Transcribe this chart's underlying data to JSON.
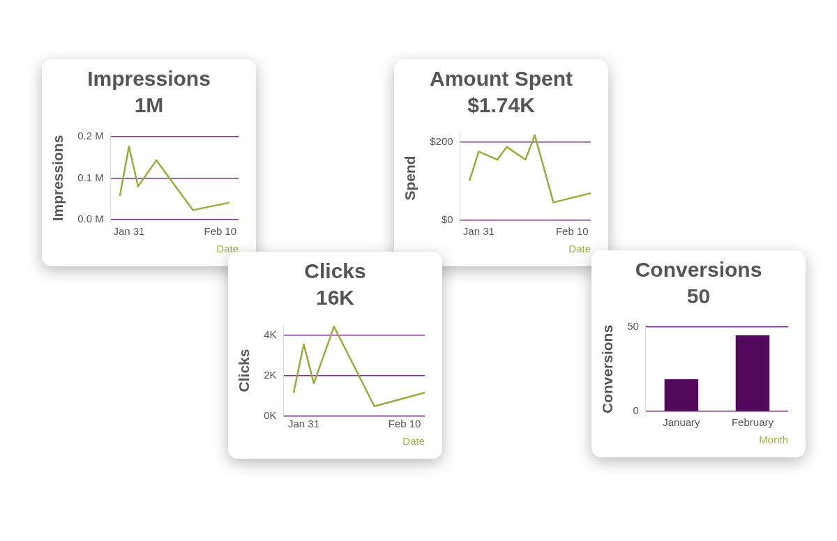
{
  "chart_data": [
    {
      "type": "line",
      "title": "Impressions",
      "subtitle": "1M",
      "ylabel": "Impressions",
      "xlabel": "Date",
      "marker": "none",
      "grid": "y",
      "legend": false,
      "x": [
        "--01-30",
        "--01-31",
        "--02-01",
        "--02-03",
        "--02-07",
        "--02-11"
      ],
      "series": [
        {
          "color": "#9aab3c",
          "values": [
            0.057,
            0.176,
            0.08,
            0.143,
            0.023,
            0.041
          ]
        }
      ],
      "xlim": [
        "--01-29",
        "--02-12"
      ],
      "xticks": [
        {
          "value": "--01-31",
          "label": "Jan 31"
        },
        {
          "value": "--02-10",
          "label": "Feb 10"
        }
      ],
      "ylim": [
        -0.01,
        0.21
      ],
      "yticks": [
        {
          "value": 0,
          "label": "0.0 M"
        },
        {
          "value": 0.1,
          "label": "0.1 M"
        },
        {
          "value": 0.2,
          "label": "0.2 M"
        }
      ]
    },
    {
      "type": "line",
      "title": "Amount Spent",
      "subtitle": "$1.74K",
      "ylabel": "Spend",
      "xlabel": "Date",
      "marker": "none",
      "grid": "y",
      "legend": false,
      "x": [
        "--01-30",
        "--01-31",
        "--02-02",
        "--02-03",
        "--02-05",
        "--02-06",
        "--02-08",
        "--02-12"
      ],
      "series": [
        {
          "color": "#9aab3c",
          "values": [
            100,
            176,
            155,
            188,
            155,
            218,
            45,
            69
          ]
        }
      ],
      "xlim": [
        "--01-29",
        "--02-12"
      ],
      "xticks": [
        {
          "value": "--01-31",
          "label": "Jan 31"
        },
        {
          "value": "--02-10",
          "label": "Feb 10"
        }
      ],
      "ylim": [
        -10,
        225
      ],
      "yticks": [
        {
          "value": 0,
          "label": "$0"
        },
        {
          "value": 200,
          "label": "$200"
        }
      ]
    },
    {
      "type": "line",
      "title": "Clicks",
      "subtitle": "16K",
      "ylabel": "Clicks",
      "xlabel": "Date",
      "marker": "none",
      "grid": "y",
      "legend": false,
      "x": [
        "--01-30",
        "--01-31",
        "--02-01",
        "--02-03",
        "--02-07",
        "--02-12"
      ],
      "series": [
        {
          "color": "#9aab3c",
          "values": [
            1.16,
            3.54,
            1.62,
            4.42,
            0.49,
            1.16
          ]
        }
      ],
      "xlim": [
        "--01-29",
        "--02-12"
      ],
      "xticks": [
        {
          "value": "--01-31",
          "label": "Jan 31"
        },
        {
          "value": "--02-10",
          "label": "Feb 10"
        }
      ],
      "ylim": [
        0,
        4.5
      ],
      "yticks": [
        {
          "value": 0,
          "label": "0K"
        },
        {
          "value": 2,
          "label": "2K"
        },
        {
          "value": 4,
          "label": "4K"
        }
      ]
    },
    {
      "type": "bar",
      "title": "Conversions",
      "subtitle": "50",
      "ylabel": "Conversions",
      "xlabel": "Month",
      "grid": "y",
      "legend": false,
      "categories": [
        "January",
        "February"
      ],
      "series": [
        {
          "color": "#540a5c",
          "values": [
            19,
            45
          ]
        }
      ],
      "ylim": [
        -2,
        52
      ],
      "yticks": [
        0,
        50
      ]
    }
  ]
}
